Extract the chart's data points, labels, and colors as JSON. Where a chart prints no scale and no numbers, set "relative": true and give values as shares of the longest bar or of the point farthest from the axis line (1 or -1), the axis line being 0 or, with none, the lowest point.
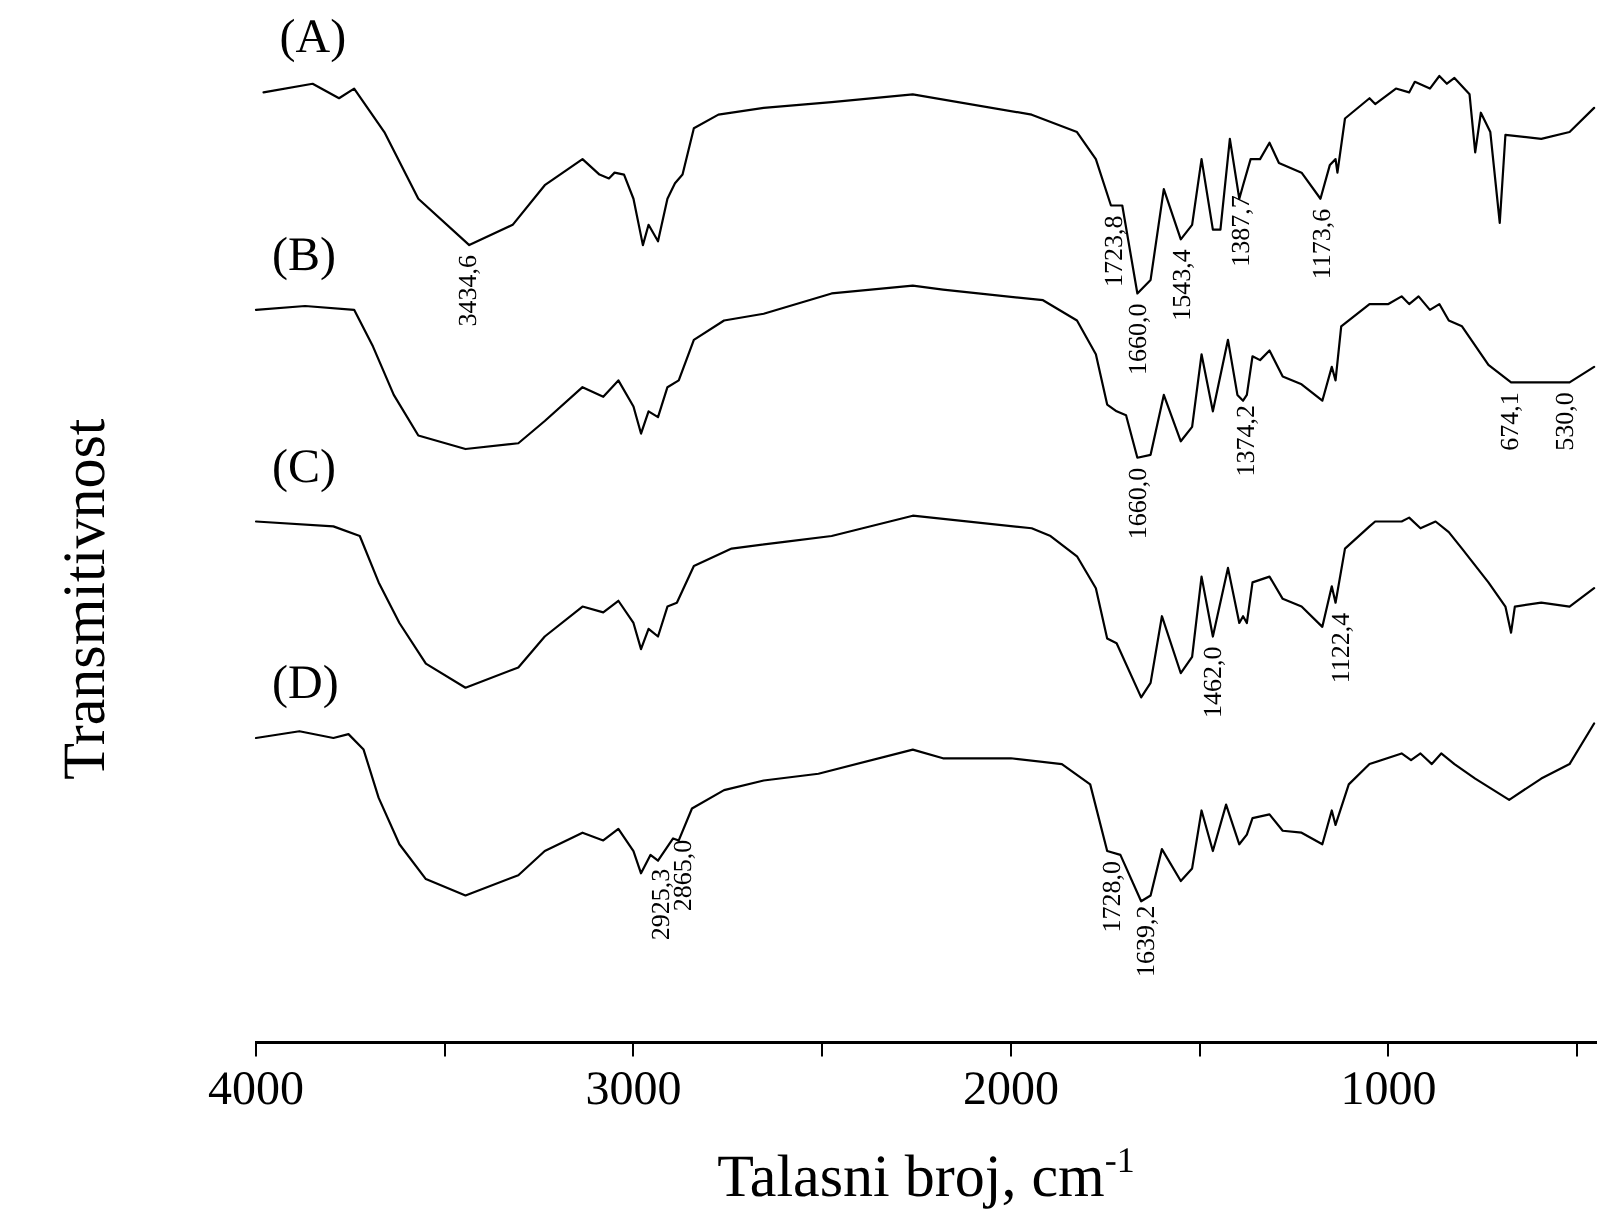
{
  "chart_data": {
    "type": "line",
    "xlabel": "Talasni broj, cm$^{-1}$",
    "ylabel": "Transmitivnost",
    "relative": true,
    "legend": false,
    "grid": false,
    "marker": "none",
    "line_style": "solid",
    "xlim": [
      4000,
      450
    ],
    "xticks": [
      4000,
      {
        "value": 3500,
        "label": null
      },
      3000,
      {
        "value": 2500,
        "label": null
      },
      2000,
      {
        "value": 1500,
        "label": null
      },
      1000,
      {
        "value": 500,
        "label": null
      }
    ],
    "series": [
      {
        "name": "(A)",
        "color": "#000000",
        "x": [
          3980,
          3850,
          3780,
          3740,
          3660,
          3570,
          3435,
          3320,
          3235,
          3135,
          3090,
          3065,
          3050,
          3025,
          3000,
          2975,
          2960,
          2935,
          2910,
          2890,
          2870,
          2840,
          2775,
          2655,
          2475,
          2260,
          1945,
          1825,
          1775,
          1735,
          1705,
          1665,
          1630,
          1595,
          1550,
          1520,
          1495,
          1465,
          1445,
          1420,
          1395,
          1385,
          1365,
          1340,
          1315,
          1290,
          1230,
          1180,
          1155,
          1140,
          1135,
          1115,
          1050,
          1035,
          980,
          945,
          930,
          890,
          865,
          845,
          825,
          785,
          770,
          755,
          730,
          705,
          690,
          595,
          520,
          455
        ],
        "values": [
          0.983,
          0.992,
          0.977,
          0.987,
          0.942,
          0.873,
          0.825,
          0.846,
          0.887,
          0.914,
          0.898,
          0.894,
          0.9,
          0.898,
          0.873,
          0.825,
          0.846,
          0.829,
          0.873,
          0.889,
          0.898,
          0.946,
          0.96,
          0.967,
          0.973,
          0.981,
          0.96,
          0.942,
          0.914,
          0.866,
          0.866,
          0.775,
          0.789,
          0.883,
          0.831,
          0.846,
          0.914,
          0.841,
          0.841,
          0.935,
          0.873,
          0.887,
          0.914,
          0.914,
          0.931,
          0.91,
          0.9,
          0.873,
          0.908,
          0.914,
          0.9,
          0.956,
          0.977,
          0.971,
          0.987,
          0.983,
          0.994,
          0.987,
          1,
          0.992,
          0.998,
          0.981,
          0.921,
          0.962,
          0.942,
          0.848,
          0.939,
          0.935,
          0.942,
          0.967
        ]
      },
      {
        "name": "(B)",
        "color": "#000000",
        "x": [
          4000,
          3870,
          3740,
          3690,
          3635,
          3570,
          3445,
          3305,
          3235,
          3135,
          3080,
          3040,
          3000,
          2980,
          2960,
          2935,
          2910,
          2880,
          2840,
          2760,
          2655,
          2475,
          2260,
          2180,
          1915,
          1825,
          1775,
          1745,
          1720,
          1695,
          1665,
          1630,
          1595,
          1550,
          1520,
          1495,
          1465,
          1425,
          1400,
          1385,
          1375,
          1360,
          1340,
          1315,
          1280,
          1230,
          1175,
          1150,
          1140,
          1125,
          1050,
          1000,
          965,
          945,
          920,
          890,
          865,
          840,
          805,
          735,
          675,
          520,
          455
        ],
        "values": [
          0.758,
          0.762,
          0.758,
          0.72,
          0.67,
          0.628,
          0.614,
          0.62,
          0.643,
          0.678,
          0.668,
          0.685,
          0.658,
          0.63,
          0.653,
          0.647,
          0.678,
          0.685,
          0.727,
          0.747,
          0.754,
          0.775,
          0.783,
          0.779,
          0.768,
          0.747,
          0.712,
          0.66,
          0.653,
          0.649,
          0.605,
          0.608,
          0.67,
          0.622,
          0.637,
          0.712,
          0.653,
          0.727,
          0.67,
          0.664,
          0.67,
          0.71,
          0.706,
          0.716,
          0.689,
          0.681,
          0.664,
          0.699,
          0.685,
          0.741,
          0.764,
          0.764,
          0.772,
          0.764,
          0.772,
          0.758,
          0.764,
          0.747,
          0.741,
          0.701,
          0.683,
          0.683,
          0.699
        ]
      },
      {
        "name": "(C)",
        "color": "#000000",
        "x": [
          4000,
          3795,
          3725,
          3675,
          3620,
          3550,
          3445,
          3305,
          3235,
          3135,
          3080,
          3040,
          3000,
          2980,
          2960,
          2935,
          2910,
          2885,
          2840,
          2740,
          2600,
          2475,
          2260,
          1945,
          1895,
          1825,
          1775,
          1745,
          1720,
          1655,
          1630,
          1600,
          1550,
          1520,
          1495,
          1465,
          1425,
          1395,
          1385,
          1375,
          1360,
          1315,
          1280,
          1230,
          1175,
          1150,
          1140,
          1115,
          1050,
          1035,
          965,
          945,
          915,
          875,
          840,
          805,
          735,
          690,
          675,
          665,
          595,
          520,
          455
        ],
        "values": [
          0.539,
          0.534,
          0.524,
          0.476,
          0.434,
          0.392,
          0.367,
          0.388,
          0.42,
          0.451,
          0.445,
          0.457,
          0.434,
          0.407,
          0.428,
          0.42,
          0.451,
          0.455,
          0.493,
          0.511,
          0.518,
          0.524,
          0.545,
          0.532,
          0.524,
          0.503,
          0.47,
          0.418,
          0.413,
          0.357,
          0.372,
          0.441,
          0.382,
          0.399,
          0.482,
          0.42,
          0.491,
          0.434,
          0.441,
          0.434,
          0.476,
          0.482,
          0.459,
          0.451,
          0.43,
          0.472,
          0.455,
          0.511,
          0.534,
          0.539,
          0.539,
          0.543,
          0.532,
          0.539,
          0.528,
          0.511,
          0.476,
          0.451,
          0.424,
          0.451,
          0.455,
          0.451,
          0.47
        ]
      },
      {
        "name": "(D)",
        "color": "#000000",
        "x": [
          4000,
          3885,
          3795,
          3755,
          3715,
          3675,
          3620,
          3550,
          3445,
          3305,
          3235,
          3135,
          3080,
          3040,
          3000,
          2980,
          2955,
          2935,
          2895,
          2880,
          2845,
          2760,
          2655,
          2510,
          2260,
          2180,
          2000,
          1865,
          1790,
          1745,
          1710,
          1655,
          1630,
          1600,
          1550,
          1520,
          1495,
          1465,
          1430,
          1395,
          1375,
          1360,
          1315,
          1280,
          1230,
          1175,
          1150,
          1140,
          1105,
          1050,
          965,
          940,
          915,
          885,
          860,
          825,
          770,
          680,
          595,
          520,
          455
        ],
        "values": [
          0.315,
          0.322,
          0.315,
          0.319,
          0.303,
          0.253,
          0.205,
          0.169,
          0.152,
          0.173,
          0.198,
          0.217,
          0.209,
          0.221,
          0.198,
          0.175,
          0.194,
          0.188,
          0.211,
          0.209,
          0.242,
          0.261,
          0.271,
          0.278,
          0.303,
          0.294,
          0.294,
          0.288,
          0.267,
          0.198,
          0.194,
          0.146,
          0.152,
          0.2,
          0.167,
          0.18,
          0.24,
          0.198,
          0.246,
          0.205,
          0.215,
          0.232,
          0.236,
          0.219,
          0.217,
          0.205,
          0.24,
          0.225,
          0.267,
          0.288,
          0.299,
          0.292,
          0.299,
          0.288,
          0.299,
          0.288,
          0.273,
          0.251,
          0.273,
          0.288,
          0.33
        ]
      }
    ],
    "annotations": [
      {
        "text": "3434,6",
        "x": 3434.6,
        "y": 0.825
      },
      {
        "text": "1723,8",
        "x": 1723.8,
        "y": 0.866
      },
      {
        "text": "1660,0",
        "x": 1660,
        "y": 0.775
      },
      {
        "text": "1543,4",
        "x": 1543.4,
        "y": 0.831
      },
      {
        "text": "1387,7",
        "x": 1387.7,
        "y": 0.887
      },
      {
        "text": "1173,6",
        "x": 1173.6,
        "y": 0.873
      },
      {
        "text": "1660,0",
        "x": 1660,
        "y": 0.605
      },
      {
        "text": "1374,2",
        "x": 1374.2,
        "y": 0.67
      },
      {
        "text": "674,1",
        "x": 674.1,
        "y": 0.683
      },
      {
        "text": "530,0",
        "x": 530,
        "y": 0.683
      },
      {
        "text": "1462,0",
        "x": 1462,
        "y": 0.42
      },
      {
        "text": "1122,4",
        "x": 1122.4,
        "y": 0.455
      },
      {
        "text": "2925,3",
        "x": 2925.3,
        "y": 0.19
      },
      {
        "text": "2865,0",
        "x": 2865,
        "y": 0.22
      },
      {
        "text": "1728,0",
        "x": 1728,
        "y": 0.198
      },
      {
        "text": "1639,2",
        "x": 1639.2,
        "y": 0.152
      }
    ]
  }
}
